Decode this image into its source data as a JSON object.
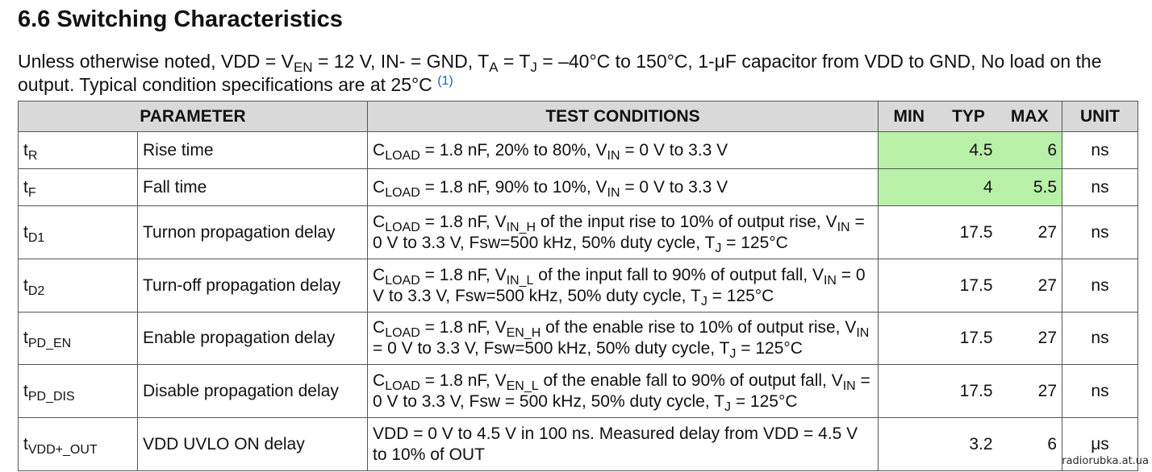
{
  "section_title": "6.6 Switching Characteristics",
  "intro": {
    "p1": "Unless otherwise noted, VDD = V",
    "s1": "EN",
    "p2": " = 12 V, IN- = GND, T",
    "s2": "A",
    "p3": " = T",
    "s3": "J",
    "p4": " = –40°C to 150°C, 1-μF capacitor from VDD to GND, No load on the output. Typical condition specifications are at 25°C ",
    "note": "(1)"
  },
  "headers": {
    "parameter": "PARAMETER",
    "test_conditions": "TEST CONDITIONS",
    "min": "MIN",
    "typ": "TYP",
    "max": "MAX",
    "unit": "UNIT"
  },
  "rows": [
    {
      "sym": "t",
      "sub": "R",
      "param": "Rise time",
      "cond": [
        {
          "t": "C"
        },
        {
          "s": "LOAD"
        },
        {
          "t": " = 1.8 nF, 20% to 80%, V"
        },
        {
          "s": "IN"
        },
        {
          "t": " = 0 V to 3.3 V"
        }
      ],
      "min": "",
      "typ": "4.5",
      "max": "6",
      "unit": "ns",
      "highlight": true
    },
    {
      "sym": "t",
      "sub": "F",
      "param": "Fall time",
      "cond": [
        {
          "t": "C"
        },
        {
          "s": "LOAD"
        },
        {
          "t": " = 1.8 nF, 90% to 10%, V"
        },
        {
          "s": "IN"
        },
        {
          "t": " = 0 V to 3.3 V"
        }
      ],
      "min": "",
      "typ": "4",
      "max": "5.5",
      "unit": "ns",
      "highlight": true
    },
    {
      "sym": "t",
      "sub": "D1",
      "param": "Turnon propagation delay",
      "cond": [
        {
          "t": "C"
        },
        {
          "s": "LOAD"
        },
        {
          "t": " = 1.8 nF, V"
        },
        {
          "s": "IN_H"
        },
        {
          "t": " of the input rise to 10% of output rise, V"
        },
        {
          "s": "IN"
        },
        {
          "t": " = 0 V to 3.3 V, Fsw=500 kHz, 50% duty cycle, T"
        },
        {
          "s": "J"
        },
        {
          "t": " = 125°C"
        }
      ],
      "min": "",
      "typ": "17.5",
      "max": "27",
      "unit": "ns",
      "highlight": false
    },
    {
      "sym": "t",
      "sub": "D2",
      "param": "Turn-off propagation delay",
      "cond": [
        {
          "t": "C"
        },
        {
          "s": "LOAD"
        },
        {
          "t": " = 1.8 nF, V"
        },
        {
          "s": "IN_L"
        },
        {
          "t": " of the input fall to 90% of output fall, V"
        },
        {
          "s": "IN"
        },
        {
          "t": " = 0 V to 3.3 V, Fsw=500 kHz, 50% duty cycle, T"
        },
        {
          "s": "J"
        },
        {
          "t": " = 125°C"
        }
      ],
      "min": "",
      "typ": "17.5",
      "max": "27",
      "unit": "ns",
      "highlight": false
    },
    {
      "sym": "t",
      "sub": "PD_EN",
      "param": "Enable propagation delay",
      "cond": [
        {
          "t": "C"
        },
        {
          "s": "LOAD"
        },
        {
          "t": " = 1.8 nF, V"
        },
        {
          "s": "EN_H"
        },
        {
          "t": " of the enable rise to 10% of output rise, V"
        },
        {
          "s": "IN"
        },
        {
          "t": " = 0 V to 3.3 V, Fsw=500 kHz, 50% duty cycle, T"
        },
        {
          "s": "J"
        },
        {
          "t": " = 125°C"
        }
      ],
      "min": "",
      "typ": "17.5",
      "max": "27",
      "unit": "ns",
      "highlight": false
    },
    {
      "sym": "t",
      "sub": "PD_DIS",
      "param": "Disable propagation delay",
      "cond": [
        {
          "t": "C"
        },
        {
          "s": "LOAD"
        },
        {
          "t": " = 1.8 nF, V"
        },
        {
          "s": "EN_L"
        },
        {
          "t": " of the enable fall to 90% of output fall, V"
        },
        {
          "s": "IN"
        },
        {
          "t": " = 0 V to 3.3 V, Fsw = 500 kHz, 50% duty cycle, T"
        },
        {
          "s": "J"
        },
        {
          "t": " = 125°C"
        }
      ],
      "min": "",
      "typ": "17.5",
      "max": "27",
      "unit": "ns",
      "highlight": false
    },
    {
      "sym": "t",
      "sub": "VDD+_OUT",
      "param": "VDD UVLO ON delay",
      "cond": [
        {
          "t": "VDD = 0 V to 4.5 V in 100 ns. Measured delay from VDD = 4.5 V to 10% of OUT"
        }
      ],
      "min": "",
      "typ": "3.2",
      "max": "6",
      "unit": "μs",
      "highlight": false
    }
  ],
  "watermark": "radiorubka.at.ua",
  "colors": {
    "header_bg": "#d9d9d9",
    "highlight": "#b9f0a8",
    "note_link": "#1a5fd0"
  }
}
